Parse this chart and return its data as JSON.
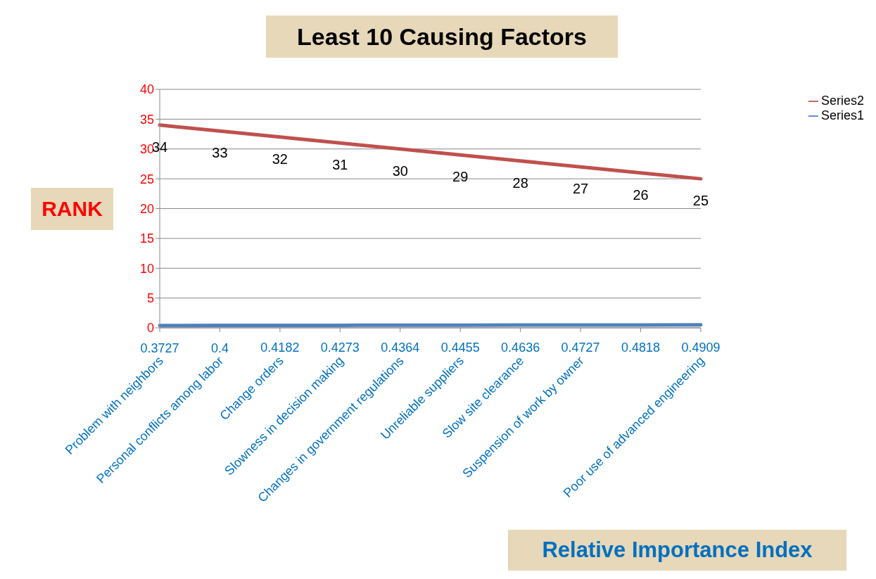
{
  "chart_data": {
    "type": "line",
    "title": "Least 10 Causing Factors",
    "xlabel": "Relative Importance Index",
    "ylabel": "RANK",
    "categories": [
      "Problem with neighbors",
      "Personal conflicts among labor",
      "Change orders",
      "Slowness in decision making",
      "Changes in government regulations",
      "Unreliable suppliers",
      "Slow site clearance",
      "Suspension of work by owner",
      null,
      "Poor use of advanced engineering"
    ],
    "series": [
      {
        "name": "Series2",
        "color": "#c0504d",
        "values": [
          34,
          33,
          32,
          31,
          30,
          29,
          28,
          27,
          26,
          25
        ],
        "value_labels": [
          "34",
          "33",
          "32",
          "31",
          "30",
          "29",
          "28",
          "27",
          "26",
          "25"
        ]
      },
      {
        "name": "Series1",
        "color": "#4f81bd",
        "values": [
          0.3727,
          0.4,
          0.4182,
          0.4273,
          0.4364,
          0.4455,
          0.4636,
          0.4727,
          0.4818,
          0.4909
        ],
        "value_labels": [
          "0.3727",
          "0.4",
          "0.4182",
          "0.4273",
          "0.4364",
          "0.4455",
          "0.4636",
          "0.4727",
          "0.4818",
          "0.4909"
        ]
      }
    ],
    "ylim": [
      0,
      40
    ],
    "yticks": [
      0,
      5,
      10,
      15,
      20,
      25,
      30,
      35,
      40
    ],
    "grid": "y",
    "legend": "right",
    "marker": "none",
    "line_style": "solid"
  }
}
